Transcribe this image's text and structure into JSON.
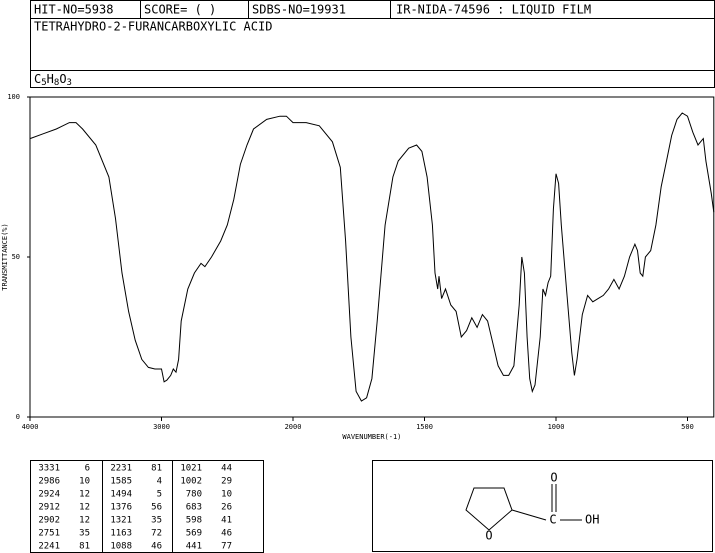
{
  "header": {
    "hit_no": "HIT-NO=5938",
    "score": "SCORE= (  )",
    "sdbs_no": "SDBS-NO=19931",
    "method": "IR-NIDA-74596 : LIQUID FILM",
    "compound": "TETRAHYDRO-2-FURANCARBOXYLIC ACID",
    "formula": [
      {
        "text": "C"
      },
      {
        "sub": "5"
      },
      {
        "text": "H"
      },
      {
        "sub": "8"
      },
      {
        "text": "O"
      },
      {
        "sub": "3"
      }
    ]
  },
  "chart_data": {
    "type": "line",
    "xlabel": "WAVENUMBER(-1)",
    "ylabel": "TRANSMITTANCE(%)",
    "xlim": [
      4000,
      400
    ],
    "xticks": [
      4000,
      3000,
      2000,
      1500,
      1000,
      500
    ],
    "ylim": [
      0,
      100
    ],
    "yticks": [
      0,
      50,
      100
    ],
    "color": "#000000",
    "x": [
      4000,
      3900,
      3800,
      3700,
      3650,
      3600,
      3500,
      3400,
      3350,
      3300,
      3250,
      3200,
      3150,
      3100,
      3050,
      3000,
      2980,
      2960,
      2930,
      2910,
      2890,
      2870,
      2850,
      2800,
      2750,
      2700,
      2670,
      2620,
      2550,
      2500,
      2450,
      2400,
      2350,
      2300,
      2200,
      2100,
      2050,
      2000,
      1950,
      1900,
      1850,
      1820,
      1800,
      1780,
      1760,
      1740,
      1720,
      1700,
      1680,
      1650,
      1620,
      1600,
      1560,
      1530,
      1510,
      1490,
      1470,
      1460,
      1450,
      1445,
      1435,
      1420,
      1400,
      1380,
      1360,
      1340,
      1320,
      1300,
      1280,
      1260,
      1240,
      1220,
      1200,
      1180,
      1160,
      1140,
      1130,
      1120,
      1110,
      1100,
      1090,
      1080,
      1060,
      1050,
      1040,
      1030,
      1020,
      1010,
      1000,
      990,
      980,
      960,
      940,
      930,
      920,
      900,
      880,
      860,
      840,
      820,
      800,
      780,
      760,
      740,
      720,
      700,
      690,
      680,
      670,
      660,
      640,
      620,
      600,
      580,
      560,
      540,
      520,
      500,
      480,
      460,
      450,
      440,
      430,
      410,
      400
    ],
    "values": [
      87,
      88.5,
      90,
      92,
      92,
      90,
      85,
      75,
      62,
      45,
      33,
      24,
      18,
      15.5,
      15,
      15,
      11,
      11.5,
      13,
      15,
      14,
      18,
      30,
      40,
      45,
      48,
      47,
      50,
      55,
      60,
      68,
      79,
      85,
      90,
      93,
      94,
      94,
      92,
      92,
      91,
      86,
      78,
      55,
      25,
      8,
      5,
      6,
      12,
      30,
      60,
      75,
      80,
      84,
      85,
      83,
      75,
      60,
      45,
      40,
      44,
      37,
      40,
      35,
      33,
      25,
      27,
      31,
      28,
      32,
      30,
      23,
      16,
      13,
      13,
      16,
      35,
      50,
      45,
      25,
      12,
      8,
      10,
      25,
      40,
      38,
      42,
      44,
      65,
      76,
      73,
      60,
      40,
      20,
      13,
      18,
      32,
      38,
      36,
      37,
      38,
      40,
      43,
      40,
      44,
      50,
      54,
      52,
      45,
      44,
      50,
      52,
      60,
      72,
      80,
      88,
      93,
      95,
      94,
      89,
      85,
      86,
      87,
      80,
      70,
      64
    ]
  },
  "peaks": [
    [
      [
        "3331",
        "6"
      ],
      [
        "2986",
        "10"
      ],
      [
        "2924",
        "12"
      ],
      [
        "2912",
        "12"
      ],
      [
        "2902",
        "12"
      ],
      [
        "2751",
        "35"
      ],
      [
        "2241",
        "81"
      ]
    ],
    [
      [
        "2231",
        "81"
      ],
      [
        "1585",
        "4"
      ],
      [
        "1494",
        "5"
      ],
      [
        "1376",
        "56"
      ],
      [
        "1321",
        "35"
      ],
      [
        "1163",
        "72"
      ],
      [
        "1088",
        "46"
      ]
    ],
    [
      [
        "1021",
        "44"
      ],
      [
        "1002",
        "29"
      ],
      [
        "780",
        "10"
      ],
      [
        "683",
        "26"
      ],
      [
        "598",
        "41"
      ],
      [
        "569",
        "46"
      ],
      [
        "441",
        "77"
      ]
    ]
  ],
  "structure": {
    "carbonyl_o": "O",
    "carbon": "C",
    "hydroxyl": "OH",
    "ring_o": "O"
  }
}
